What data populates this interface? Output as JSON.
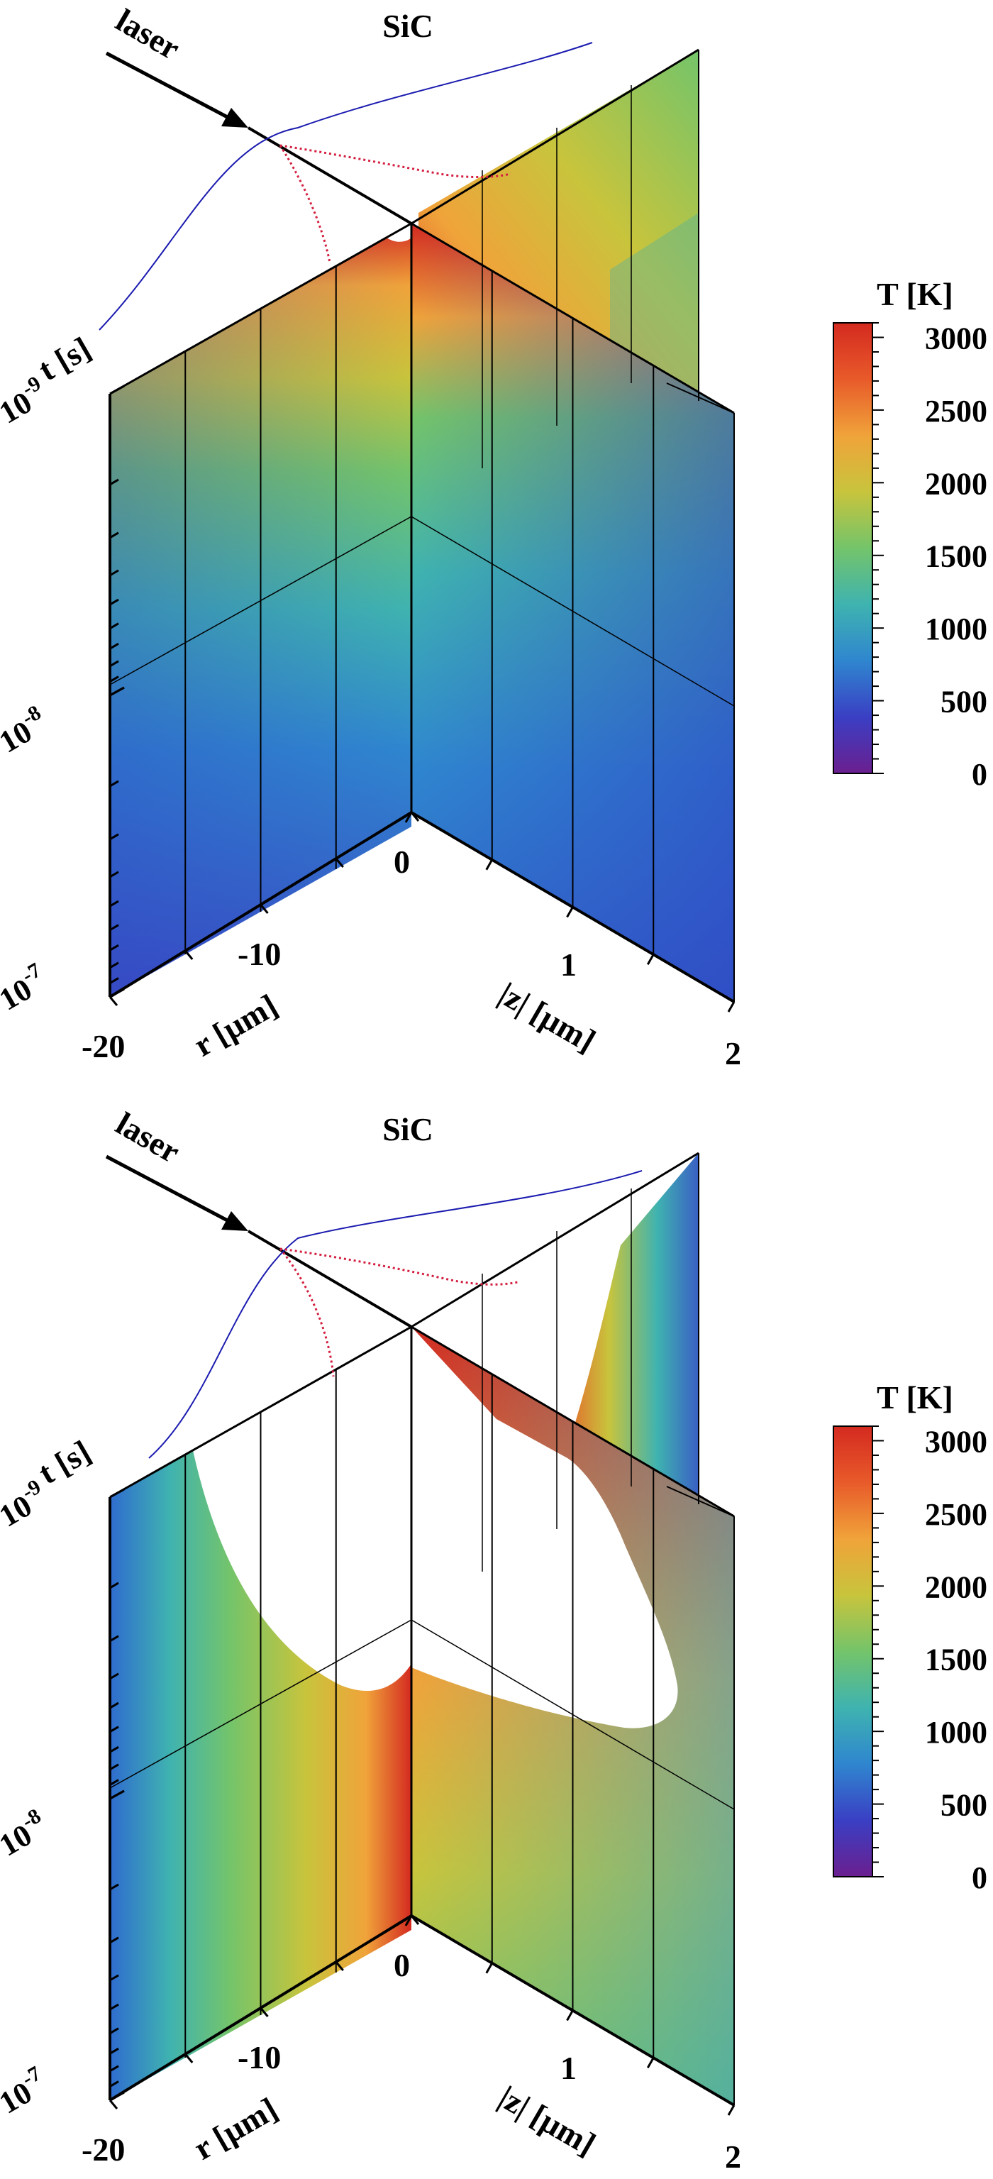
{
  "chart_data": [
    {
      "type": "heatmap",
      "title": "SiC",
      "laser_label": "laser",
      "t_axis": {
        "label": "t [s]",
        "ticks": [
          {
            "base": "10",
            "exp": "-9"
          },
          {
            "base": "10",
            "exp": "-8"
          },
          {
            "base": "10",
            "exp": "-7"
          }
        ],
        "range": [
          1e-09,
          1e-07
        ],
        "scale": "log"
      },
      "r_axis": {
        "label": "r [µm]",
        "ticks": [
          "-20",
          "-10",
          "0"
        ],
        "range": [
          -20,
          0
        ]
      },
      "z_axis": {
        "label": "|z| [µm]",
        "ticks": [
          "1",
          "2"
        ],
        "range": [
          0,
          2
        ]
      },
      "colorbar": {
        "label": "T [K]",
        "ticks": [
          "3000",
          "2500",
          "2000",
          "1500",
          "1000",
          "500",
          "0"
        ],
        "range": [
          0,
          3100
        ]
      },
      "colors": {
        "colormap": [
          "#6b1f8f",
          "#3a3fc4",
          "#2f86cf",
          "#3fb3b0",
          "#74c46a",
          "#c8c43c",
          "#f0a33a",
          "#e85a2a",
          "#d42a20"
        ],
        "laser_profile": "#1b1bb0",
        "temperature_profile": "#d42040"
      },
      "notes": "Temperature field on r-t and |z|-t planes; peak ~3000 K near r=0 at t~1e-9 s"
    },
    {
      "type": "heatmap",
      "title": "SiC",
      "laser_label": "laser",
      "t_axis": {
        "label": "t [s]",
        "ticks": [
          {
            "base": "10",
            "exp": "-9"
          },
          {
            "base": "10",
            "exp": "-8"
          },
          {
            "base": "10",
            "exp": "-7"
          }
        ],
        "range": [
          1e-09,
          1e-07
        ],
        "scale": "log"
      },
      "r_axis": {
        "label": "r [µm]",
        "ticks": [
          "-20",
          "-10",
          "0"
        ],
        "range": [
          -20,
          0
        ]
      },
      "z_axis": {
        "label": "|z| [µm]",
        "ticks": [
          "1",
          "2"
        ],
        "range": [
          0,
          2
        ]
      },
      "colorbar": {
        "label": "T [K]",
        "ticks": [
          "3000",
          "2500",
          "2000",
          "1500",
          "1000",
          "500",
          "0"
        ],
        "range": [
          0,
          3100
        ]
      },
      "colors": {
        "colormap": [
          "#6b1f8f",
          "#3a3fc4",
          "#2f86cf",
          "#3fb3b0",
          "#74c46a",
          "#c8c43c",
          "#f0a33a",
          "#e85a2a",
          "#d42a20"
        ],
        "laser_profile": "#1b1bb0",
        "temperature_profile": "#d42040"
      },
      "notes": "Region above ~3000 K (ablated) shown blank; hot front near r=0 at t~5e-9 s"
    }
  ]
}
